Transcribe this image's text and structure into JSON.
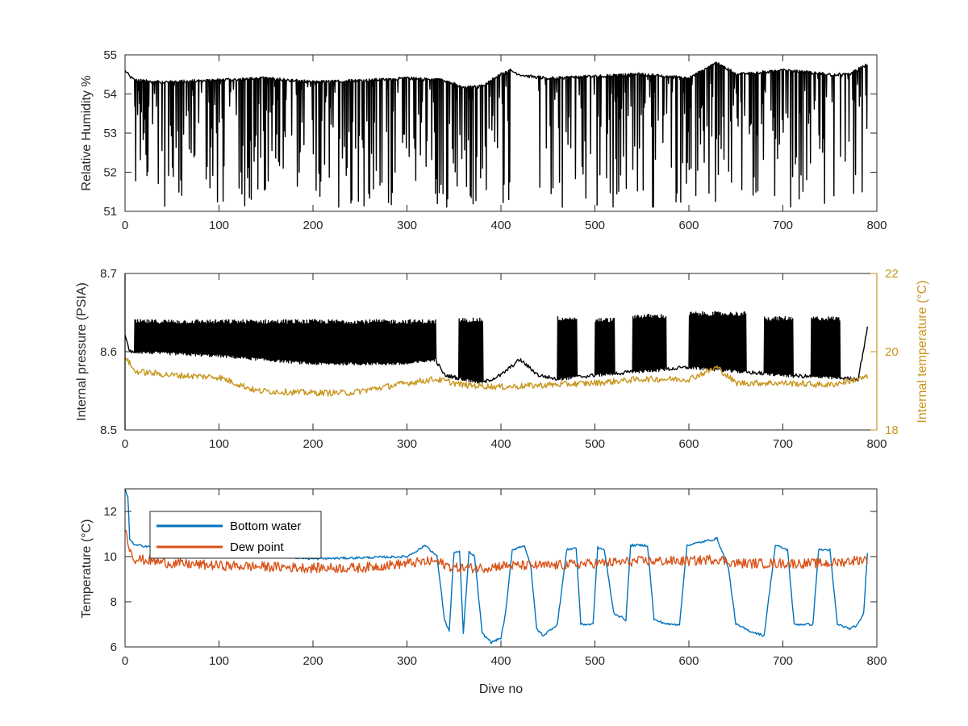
{
  "colors": {
    "axis": "#262626",
    "series_black": "#000000",
    "series_gold": "#c8961e",
    "series_blue": "#0072bd",
    "series_orange": "#d95319"
  },
  "chart_data": [
    {
      "type": "line",
      "title": "",
      "xlabel": "",
      "ylabel": "Relative Humidity %",
      "xlim": [
        0,
        800
      ],
      "ylim": [
        51,
        55
      ],
      "xticks": [
        0,
        100,
        200,
        300,
        400,
        500,
        600,
        700,
        800
      ],
      "yticks": [
        51,
        52,
        53,
        54,
        55
      ],
      "grid": false,
      "series": [
        {
          "color": "#000000",
          "generator": "spiky",
          "points": [
            [
              0,
              54.6
            ],
            [
              5,
              54.45
            ],
            [
              10,
              54.35
            ],
            [
              40,
              54.3
            ],
            [
              100,
              54.35
            ],
            [
              150,
              54.4
            ],
            [
              200,
              54.3
            ],
            [
              260,
              54.35
            ],
            [
              300,
              54.4
            ],
            [
              340,
              54.35
            ],
            [
              360,
              54.15
            ],
            [
              380,
              54.2
            ],
            [
              400,
              54.5
            ],
            [
              410,
              54.6
            ],
            [
              420,
              54.5
            ],
            [
              430,
              54.45
            ],
            [
              450,
              54.4
            ],
            [
              500,
              54.45
            ],
            [
              550,
              54.5
            ],
            [
              600,
              54.4
            ],
            [
              630,
              54.8
            ],
            [
              650,
              54.5
            ],
            [
              700,
              54.6
            ],
            [
              750,
              54.5
            ],
            [
              770,
              54.5
            ],
            [
              790,
              54.75
            ]
          ],
          "spike_min": 51.1,
          "spike_rate": 0.55,
          "spike_ranges": [
            [
              10,
              410
            ],
            [
              440,
              790
            ]
          ]
        }
      ]
    },
    {
      "type": "line",
      "title": "",
      "xlabel": "",
      "ylabel": "Internal pressure (PSIA)",
      "y2label": "Internal temperature (°C)",
      "xlim": [
        0,
        800
      ],
      "ylim": [
        8.5,
        8.7
      ],
      "y2lim": [
        18,
        22
      ],
      "xticks": [
        0,
        100,
        200,
        300,
        400,
        500,
        600,
        700,
        800
      ],
      "yticks": [
        8.5,
        8.6,
        8.7
      ],
      "y2ticks": [
        18,
        20,
        22
      ],
      "grid": false,
      "series": [
        {
          "color": "#000000",
          "axis": "left",
          "generator": "sawtooth",
          "points": [
            [
              0,
              8.62
            ],
            [
              5,
              8.6
            ],
            [
              10,
              8.6
            ],
            [
              100,
              8.595
            ],
            [
              200,
              8.585
            ],
            [
              300,
              8.585
            ],
            [
              330,
              8.59
            ],
            [
              340,
              8.57
            ],
            [
              360,
              8.565
            ],
            [
              380,
              8.56
            ],
            [
              400,
              8.57
            ],
            [
              420,
              8.59
            ],
            [
              440,
              8.57
            ],
            [
              460,
              8.565
            ],
            [
              500,
              8.57
            ],
            [
              600,
              8.58
            ],
            [
              700,
              8.57
            ],
            [
              780,
              8.565
            ],
            [
              790,
              8.63
            ]
          ],
          "bursts": [
            [
              10,
              330,
              8.638
            ],
            [
              355,
              380,
              8.64
            ],
            [
              460,
              480,
              8.642
            ],
            [
              500,
              520,
              8.64
            ],
            [
              540,
              575,
              8.645
            ],
            [
              600,
              660,
              8.648
            ],
            [
              680,
              710,
              8.642
            ],
            [
              730,
              760,
              8.642
            ]
          ]
        },
        {
          "color": "#c8961e",
          "axis": "right",
          "generator": "noisy",
          "noise": 0.08,
          "points": [
            [
              0,
              19.9
            ],
            [
              10,
              19.5
            ],
            [
              50,
              19.4
            ],
            [
              100,
              19.35
            ],
            [
              140,
              19.0
            ],
            [
              200,
              18.95
            ],
            [
              240,
              18.95
            ],
            [
              300,
              19.2
            ],
            [
              330,
              19.3
            ],
            [
              360,
              19.15
            ],
            [
              400,
              19.1
            ],
            [
              450,
              19.15
            ],
            [
              500,
              19.2
            ],
            [
              550,
              19.3
            ],
            [
              600,
              19.3
            ],
            [
              630,
              19.6
            ],
            [
              650,
              19.2
            ],
            [
              700,
              19.2
            ],
            [
              750,
              19.15
            ],
            [
              790,
              19.35
            ]
          ]
        }
      ]
    },
    {
      "type": "line",
      "title": "",
      "xlabel": "Dive no",
      "ylabel": "Temperature (°C)",
      "xlim": [
        0,
        800
      ],
      "ylim": [
        6,
        13
      ],
      "xticks": [
        0,
        100,
        200,
        300,
        400,
        500,
        600,
        700,
        800
      ],
      "yticks": [
        6,
        8,
        10,
        12
      ],
      "grid": false,
      "legend": "top-left",
      "series": [
        {
          "name": "Bottom water",
          "color": "#0072bd",
          "generator": "noisy",
          "noise": 0.05,
          "points": [
            [
              0,
              13.0
            ],
            [
              3,
              12.6
            ],
            [
              5,
              10.8
            ],
            [
              10,
              10.5
            ],
            [
              50,
              10.4
            ],
            [
              100,
              10.2
            ],
            [
              200,
              9.9
            ],
            [
              300,
              10.0
            ],
            [
              320,
              10.5
            ],
            [
              332,
              10.0
            ],
            [
              340,
              7.2
            ],
            [
              345,
              6.7
            ],
            [
              350,
              10.2
            ],
            [
              356,
              10.2
            ],
            [
              360,
              6.6
            ],
            [
              366,
              10.2
            ],
            [
              372,
              10.0
            ],
            [
              380,
              6.6
            ],
            [
              390,
              6.2
            ],
            [
              400,
              6.4
            ],
            [
              405,
              7.5
            ],
            [
              412,
              10.3
            ],
            [
              425,
              10.5
            ],
            [
              432,
              9.5
            ],
            [
              438,
              6.8
            ],
            [
              445,
              6.5
            ],
            [
              460,
              7.0
            ],
            [
              470,
              10.3
            ],
            [
              480,
              10.4
            ],
            [
              485,
              7.0
            ],
            [
              498,
              7.0
            ],
            [
              503,
              10.4
            ],
            [
              510,
              10.3
            ],
            [
              520,
              7.5
            ],
            [
              533,
              7.2
            ],
            [
              538,
              10.5
            ],
            [
              556,
              10.5
            ],
            [
              563,
              7.2
            ],
            [
              578,
              7.0
            ],
            [
              590,
              7.0
            ],
            [
              598,
              10.5
            ],
            [
              630,
              10.8
            ],
            [
              642,
              9.5
            ],
            [
              650,
              7.0
            ],
            [
              665,
              6.7
            ],
            [
              680,
              6.5
            ],
            [
              692,
              10.5
            ],
            [
              705,
              10.3
            ],
            [
              712,
              7.0
            ],
            [
              732,
              7.0
            ],
            [
              738,
              10.3
            ],
            [
              750,
              10.3
            ],
            [
              758,
              7.0
            ],
            [
              772,
              6.8
            ],
            [
              780,
              7.0
            ],
            [
              786,
              7.5
            ],
            [
              790,
              10.2
            ]
          ]
        },
        {
          "name": "Dew point",
          "color": "#d95319",
          "generator": "noisy",
          "noise": 0.22,
          "points": [
            [
              0,
              11.3
            ],
            [
              3,
              10.6
            ],
            [
              10,
              9.9
            ],
            [
              50,
              9.7
            ],
            [
              100,
              9.6
            ],
            [
              200,
              9.5
            ],
            [
              250,
              9.5
            ],
            [
              300,
              9.7
            ],
            [
              330,
              9.8
            ],
            [
              350,
              9.5
            ],
            [
              380,
              9.5
            ],
            [
              400,
              9.6
            ],
            [
              450,
              9.6
            ],
            [
              500,
              9.7
            ],
            [
              550,
              9.8
            ],
            [
              600,
              9.8
            ],
            [
              630,
              9.9
            ],
            [
              650,
              9.7
            ],
            [
              700,
              9.7
            ],
            [
              750,
              9.7
            ],
            [
              790,
              9.9
            ]
          ]
        }
      ]
    }
  ]
}
